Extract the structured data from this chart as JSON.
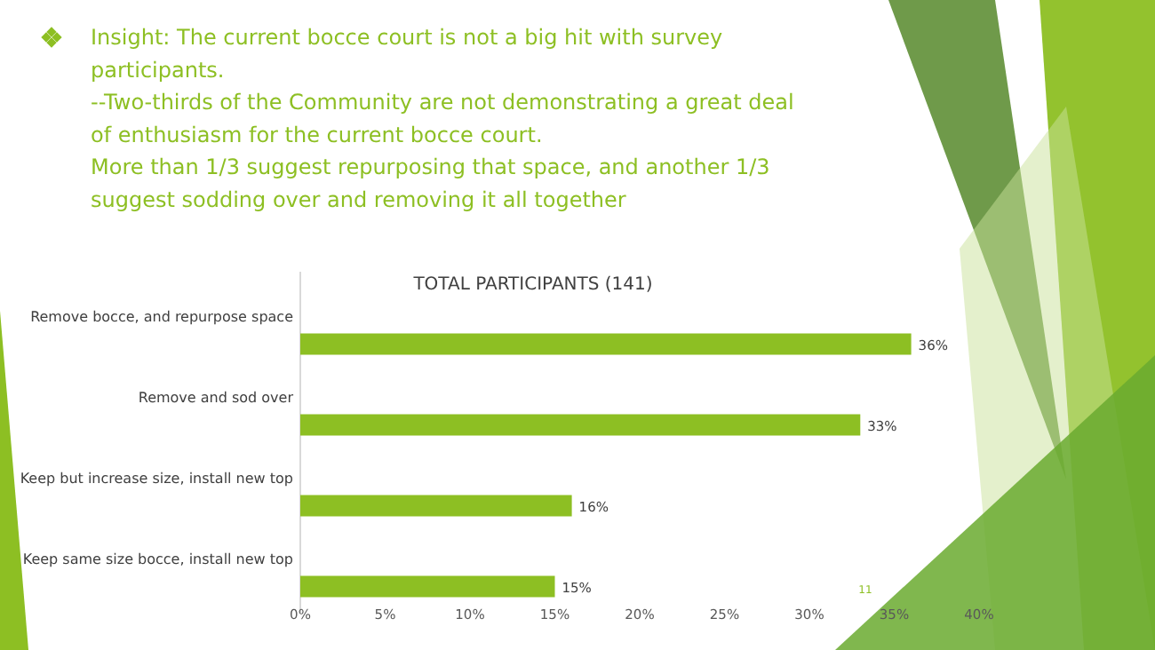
{
  "chart_data": {
    "type": "bar",
    "orientation": "horizontal",
    "title": "Insight:  The current bocce court is not a big hit with survey\nparticipants.\n--Two-thirds of the Community are not demonstrating a great deal\nof enthusiasm for the current bocce court.\nMore than 1/3 suggest repurposing that space, and another 1/3\nsuggest sodding over and removing it all together",
    "subtitle": "TOTAL PARTICIPANTS (141)",
    "categories": [
      "Remove bocce, and repurpose space",
      "Remove and sod over",
      "Keep but increase size, install new top",
      "Keep same size bocce, install new top"
    ],
    "values": [
      36,
      33,
      16,
      15
    ],
    "value_labels": [
      "36%",
      "33%",
      "16%",
      "15%"
    ],
    "color": "#8dbf23",
    "xlim": [
      0,
      40
    ],
    "xticks": [
      {
        "value": 0,
        "label": "0%"
      },
      {
        "value": 5,
        "label": "5%"
      },
      {
        "value": 10,
        "label": "10%"
      },
      {
        "value": 15,
        "label": "15%"
      },
      {
        "value": 20,
        "label": "20%"
      },
      {
        "value": 25,
        "label": "25%"
      },
      {
        "value": 30,
        "label": "30%"
      },
      {
        "value": 35,
        "label": "35%"
      },
      {
        "value": 40,
        "label": "40%"
      }
    ],
    "annotations": [
      "11"
    ]
  }
}
